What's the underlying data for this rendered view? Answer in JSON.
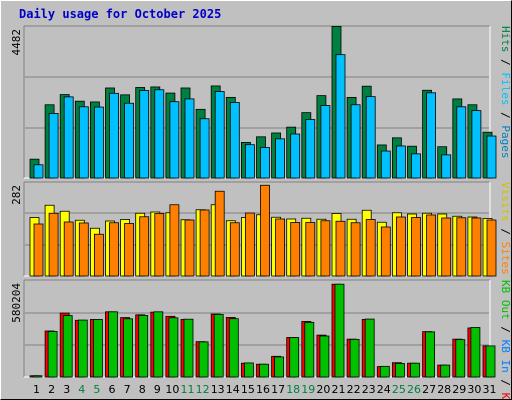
{
  "title": "Daily usage for October 2025",
  "colors": {
    "pages": "#0080c0",
    "files": "#00c0ff",
    "hits": "#008040",
    "visits": "#ffff00",
    "sites": "#ff8000",
    "kb_f": "#ff0000",
    "kb_in": "#0080ff",
    "kb_out": "#00c000",
    "weekend": "#008040",
    "day": "#000000"
  },
  "chart_data": [
    {
      "type": "bar",
      "name": "hits-files",
      "categories": [
        "1",
        "2",
        "3",
        "4",
        "5",
        "6",
        "7",
        "8",
        "9",
        "10",
        "11",
        "12",
        "13",
        "14",
        "15",
        "16",
        "17",
        "18",
        "19",
        "20",
        "21",
        "22",
        "23",
        "24",
        "25",
        "26",
        "27",
        "28",
        "29",
        "30",
        "31"
      ],
      "series": [
        {
          "name": "Hits",
          "values": [
            740,
            2880,
            3280,
            3020,
            2990,
            3540,
            3270,
            3560,
            3580,
            3340,
            3540,
            2700,
            3620,
            3170,
            1400,
            1620,
            1770,
            2000,
            2570,
            3240,
            5960,
            3170,
            3610,
            1300,
            1580,
            1250,
            3450,
            1230,
            3110,
            2880,
            1800
          ]
        },
        {
          "name": "Files",
          "values": [
            520,
            2540,
            3190,
            2800,
            2790,
            3330,
            2940,
            3440,
            3470,
            3000,
            3110,
            2330,
            3400,
            2970,
            1310,
            1200,
            1540,
            1730,
            2300,
            2850,
            4850,
            2880,
            3200,
            1060,
            1260,
            950,
            3350,
            910,
            2800,
            2650,
            1650
          ]
        }
      ],
      "ymax_label": "4482",
      "ylim": [
        0,
        5977
      ],
      "legend": [
        "Pages",
        "Files",
        "Hits"
      ]
    },
    {
      "type": "bar",
      "name": "visits-sites",
      "categories": [
        "1",
        "2",
        "3",
        "4",
        "5",
        "6",
        "7",
        "8",
        "9",
        "10",
        "11",
        "12",
        "13",
        "14",
        "15",
        "16",
        "17",
        "18",
        "19",
        "20",
        "21",
        "22",
        "23",
        "24",
        "25",
        "26",
        "27",
        "28",
        "29",
        "30",
        "31"
      ],
      "series": [
        {
          "name": "Visits",
          "values": [
            234,
            283,
            259,
            223,
            191,
            220,
            226,
            251,
            256,
            253,
            225,
            265,
            285,
            221,
            234,
            245,
            235,
            228,
            231,
            227,
            250,
            227,
            263,
            215,
            253,
            248,
            251,
            248,
            239,
            236,
            230
          ]
        },
        {
          "name": "Sites",
          "values": [
            208,
            251,
            216,
            212,
            167,
            213,
            210,
            237,
            250,
            285,
            224,
            264,
            339,
            213,
            252,
            363,
            228,
            214,
            214,
            221,
            219,
            213,
            226,
            196,
            236,
            234,
            244,
            232,
            233,
            232,
            224
          ]
        }
      ],
      "ymax_label": "282",
      "ylim": [
        0,
        376
      ],
      "legend": [
        "Visits",
        "Sites"
      ]
    },
    {
      "type": "bar",
      "name": "kbytes",
      "categories": [
        "1",
        "2",
        "3",
        "4",
        "5",
        "6",
        "7",
        "8",
        "9",
        "10",
        "11",
        "12",
        "13",
        "14",
        "15",
        "16",
        "17",
        "18",
        "19",
        "20",
        "21",
        "22",
        "23",
        "24",
        "25",
        "26",
        "27",
        "28",
        "29",
        "30",
        "31"
      ],
      "series": [
        {
          "name": "KB F",
          "values": [
            10000,
            367000,
            510000,
            452000,
            459000,
            520000,
            474000,
            496000,
            517000,
            484000,
            459000,
            282000,
            502000,
            475000,
            110000,
            102000,
            165000,
            315000,
            443000,
            334000,
            740000,
            302000,
            459000,
            83000,
            114000,
            110000,
            362000,
            95000,
            302000,
            391000,
            248000
          ]
        },
        {
          "name": "KB Out",
          "values": [
            10000,
            363000,
            490000,
            454000,
            459000,
            520000,
            464000,
            491000,
            520000,
            472000,
            461000,
            280000,
            499000,
            465000,
            112000,
            102000,
            160000,
            315000,
            436000,
            327000,
            740000,
            300000,
            462000,
            85000,
            108000,
            110000,
            360000,
            95000,
            298000,
            395000,
            248000
          ]
        }
      ],
      "ymax_label": "580204",
      "ylim": [
        0,
        773600
      ],
      "legend": [
        "KB F",
        "KB In",
        "KB Out"
      ]
    }
  ],
  "weekend_days": [
    4,
    5,
    11,
    12,
    18,
    19,
    25,
    26
  ]
}
